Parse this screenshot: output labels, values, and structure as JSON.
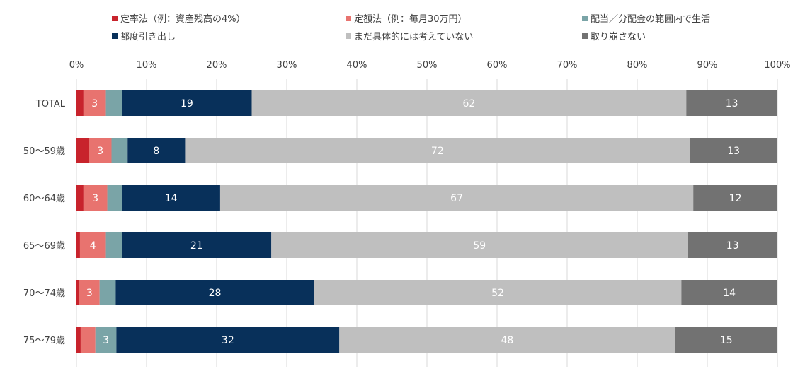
{
  "chart_data": {
    "type": "bar",
    "orientation": "horizontal",
    "stacked": true,
    "normalized_percent": true,
    "title": "",
    "xlabel": "",
    "ylabel": "",
    "xlim": [
      0,
      100
    ],
    "x_ticks": [
      "0%",
      "10%",
      "20%",
      "30%",
      "40%",
      "50%",
      "60%",
      "70%",
      "80%",
      "90%",
      "100%"
    ],
    "grid": "vertical",
    "legend_position": "top",
    "categories": [
      "TOTAL",
      "50～59歳",
      "60～64歳",
      "65～69歳",
      "70～74歳",
      "75～79歳"
    ],
    "series": [
      {
        "name": "定率法（例：資産残高の4%）",
        "color": "#c8232c",
        "text_color": "#ffffff",
        "values": [
          1.0,
          1.8,
          1.0,
          0.5,
          0.4,
          0.6
        ]
      },
      {
        "name": "定額法（例：毎月30万円）",
        "color": "#e8736f",
        "text_color": "#ffffff",
        "values": [
          3.2,
          3.2,
          3.4,
          3.7,
          2.9,
          2.1
        ]
      },
      {
        "name": "配当／分配金の範囲内で生活",
        "color": "#7aa4a7",
        "text_color": "#ffffff",
        "values": [
          2.3,
          2.3,
          2.1,
          2.3,
          2.3,
          3.0
        ]
      },
      {
        "name": "都度引き出し",
        "color": "#08305a",
        "text_color": "#ffffff",
        "values": [
          18.5,
          8.2,
          14.0,
          21.3,
          28.3,
          31.8
        ]
      },
      {
        "name": "まだ具体的には考えていない",
        "color": "#bfbfbf",
        "text_color": "#ffffff",
        "values": [
          62.0,
          72.0,
          67.5,
          59.4,
          52.4,
          47.9
        ]
      },
      {
        "name": "取り崩さない",
        "color": "#727272",
        "text_color": "#ffffff",
        "values": [
          13.0,
          12.5,
          12.0,
          12.8,
          13.7,
          14.6
        ]
      }
    ],
    "data_labels": [
      [
        "",
        "3",
        "",
        "19",
        "62",
        "13"
      ],
      [
        "",
        "3",
        "",
        "8",
        "72",
        "13"
      ],
      [
        "",
        "3",
        "",
        "14",
        "67",
        "12"
      ],
      [
        "",
        "4",
        "",
        "21",
        "59",
        "13"
      ],
      [
        "",
        "3",
        "",
        "28",
        "52",
        "14"
      ],
      [
        "",
        "",
        "3",
        "32",
        "48",
        "15"
      ]
    ]
  }
}
